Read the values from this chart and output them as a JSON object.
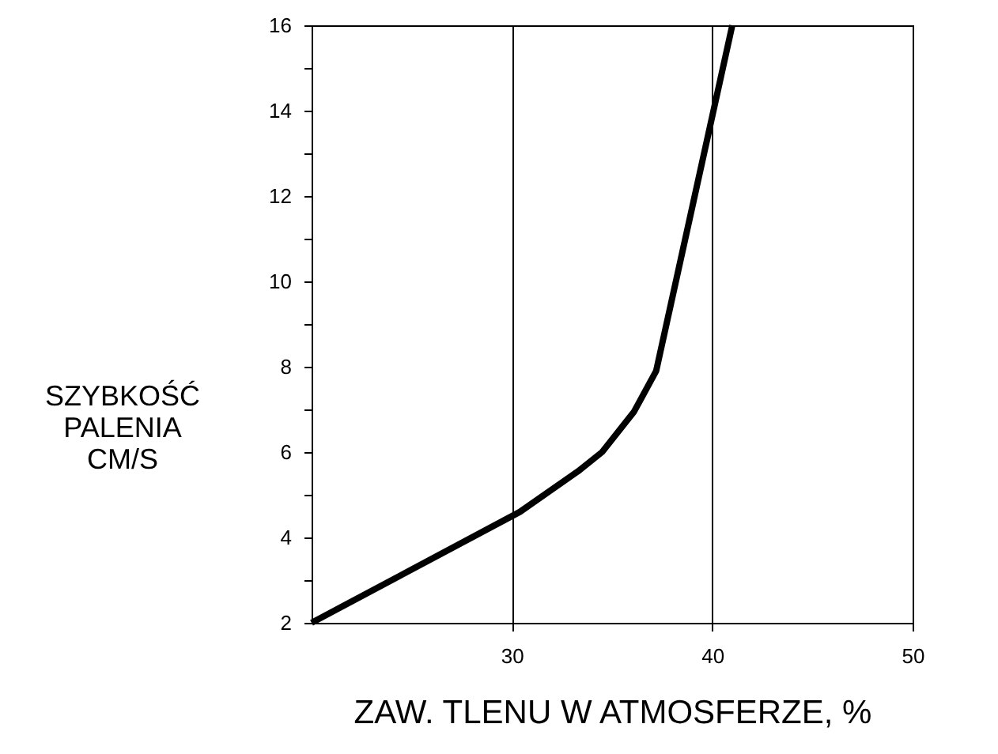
{
  "chart_data": {
    "type": "line",
    "xlabel": "ZAW. TLENU W ATMOSFERZE, %",
    "ylabel": "SZYBKOŚĆ PALENIA CM/S",
    "x": [
      20,
      30.4,
      33.3,
      34.5,
      36.1,
      37.2,
      41.0
    ],
    "series": [
      {
        "color": "#000000",
        "values": [
          2,
          4.6,
          5.55,
          6.0,
          6.95,
          7.9,
          16
        ]
      }
    ],
    "xlim": [
      20,
      50
    ],
    "xticks": [
      30,
      40,
      50
    ],
    "ylim": [
      2,
      16
    ],
    "yticks": [
      2,
      {
        "value": 3,
        "label": null
      },
      4,
      {
        "value": 5,
        "label": null
      },
      6,
      {
        "value": 7,
        "label": null
      },
      8,
      {
        "value": 9,
        "label": null
      },
      10,
      {
        "value": 11,
        "label": null
      },
      12,
      {
        "value": 13,
        "label": null
      },
      14,
      {
        "value": 15,
        "label": null
      },
      16
    ],
    "grid": "x",
    "marker": "none",
    "line_style": "solid"
  }
}
